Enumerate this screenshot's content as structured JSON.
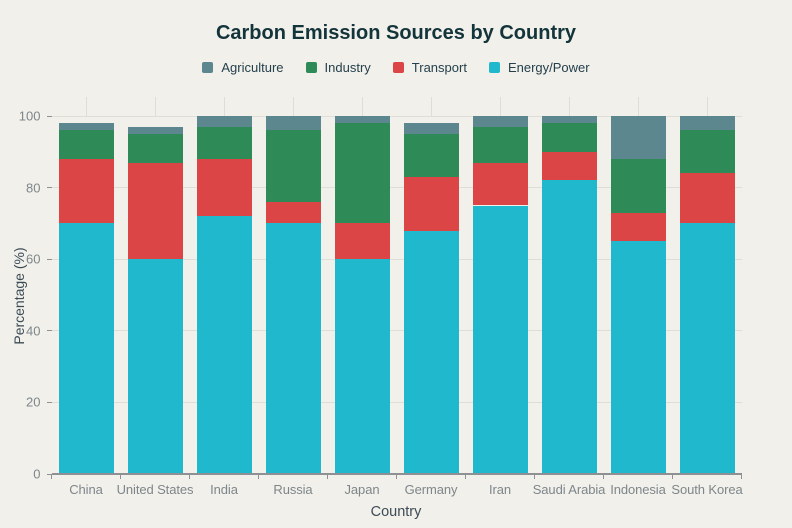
{
  "page": {
    "background": "#F1F0EA",
    "title_color": "#13343B",
    "legend_text_color": "#25404D",
    "axis_title_color": "#3C4C57",
    "tick_label_color": "#7E868B",
    "gridline_color": "#DFDED6",
    "axis_line_color": "#8F9094"
  },
  "chart_data": {
    "type": "bar",
    "stacked": true,
    "title": "Carbon Emission Sources by Country",
    "xlabel": "Country",
    "ylabel": "Percentage (%)",
    "ylim": [
      0,
      100
    ],
    "yticks": [
      0,
      20,
      40,
      60,
      80,
      100
    ],
    "grid": true,
    "legend_position": "top-center",
    "categories": [
      "China",
      "United States",
      "India",
      "Russia",
      "Japan",
      "Germany",
      "Iran",
      "Saudi Arabia",
      "Indonesia",
      "South Korea"
    ],
    "series": [
      {
        "name": "Energy/Power",
        "color": "#1FB8CD",
        "values": [
          70,
          60,
          72,
          70,
          60,
          68,
          75,
          82,
          65,
          70
        ]
      },
      {
        "name": "Transport",
        "color": "#DB4545",
        "values": [
          18,
          27,
          16,
          6,
          10,
          15,
          12,
          8,
          8,
          14
        ]
      },
      {
        "name": "Industry",
        "color": "#2E8B57",
        "values": [
          8,
          8,
          9,
          20,
          28,
          12,
          10,
          8,
          15,
          12
        ]
      },
      {
        "name": "Agriculture",
        "color": "#5D878F",
        "values": [
          2,
          2,
          3,
          4,
          2,
          3,
          3,
          2,
          12,
          4
        ]
      }
    ],
    "legend": [
      {
        "label": "Agriculture",
        "color": "#5D878F"
      },
      {
        "label": "Industry",
        "color": "#2E8B57"
      },
      {
        "label": "Transport",
        "color": "#DB4545"
      },
      {
        "label": "Energy/Power",
        "color": "#1FB8CD"
      }
    ]
  }
}
